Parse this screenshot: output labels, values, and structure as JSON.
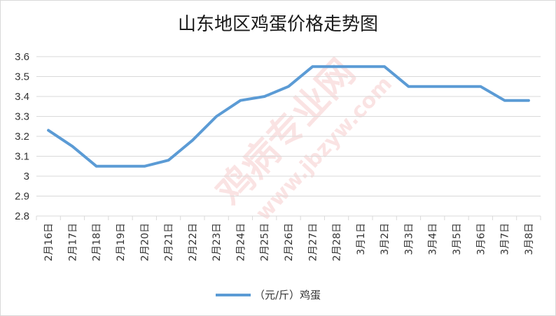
{
  "chart_data": {
    "type": "line",
    "title": "山东地区鸡蛋价格走势图",
    "xlabel": "",
    "ylabel": "",
    "categories": [
      "2月16日",
      "2月17日",
      "2月18日",
      "2月19日",
      "2月20日",
      "2月21日",
      "2月22日",
      "2月23日",
      "2月24日",
      "2月25日",
      "2月26日",
      "2月27日",
      "2月28日",
      "3月1日",
      "3月2日",
      "3月3日",
      "3月4日",
      "3月5日",
      "3月6日",
      "3月7日",
      "3月8日"
    ],
    "series": [
      {
        "name": "（元/斤）鸡蛋",
        "values": [
          3.23,
          3.15,
          3.05,
          3.05,
          3.05,
          3.08,
          3.18,
          3.3,
          3.38,
          3.4,
          3.45,
          3.55,
          3.55,
          3.55,
          3.55,
          3.45,
          3.45,
          3.45,
          3.45,
          3.38,
          3.38
        ]
      }
    ],
    "ylim": [
      2.8,
      3.6
    ],
    "yticks": [
      "2.8",
      "2.9",
      "3",
      "3.1",
      "3.2",
      "3.3",
      "3.4",
      "3.5",
      "3.6"
    ],
    "grid": true,
    "legend": "bottom",
    "line_color": "#5b9bd5",
    "grid_color": "#d9d9d9"
  },
  "watermark": {
    "text1": "鸡病专业网",
    "text2": "www.jbzyw.com"
  }
}
